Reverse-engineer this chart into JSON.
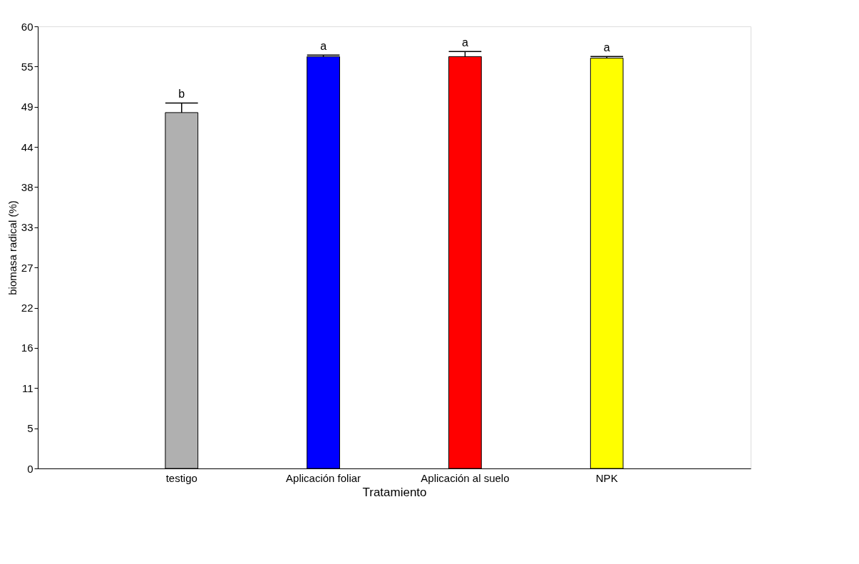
{
  "chart_data": {
    "type": "bar",
    "xlabel": "Tratamiento",
    "ylabel": "biomasa radical (%)",
    "categories": [
      "testigo",
      "Aplicación foliar",
      "Aplicación al suelo",
      "NPK"
    ],
    "values": [
      48.3,
      55.9,
      55.9,
      55.7
    ],
    "colors": [
      "#b0b0b0",
      "#0000ff",
      "#ff0000",
      "#ffff00"
    ],
    "errors": [
      [
        48.3,
        49.6
      ],
      [
        55.9,
        56.1
      ],
      [
        55.9,
        56.6
      ],
      [
        55.7,
        55.9
      ]
    ],
    "ylim": [
      0,
      60
    ],
    "yticks": [
      0,
      {
        "value": 5.45,
        "label": "5"
      },
      {
        "value": 10.91,
        "label": "11"
      },
      {
        "value": 16.36,
        "label": "16"
      },
      {
        "value": 21.82,
        "label": "22"
      },
      {
        "value": 27.27,
        "label": "27"
      },
      {
        "value": 32.73,
        "label": "33"
      },
      {
        "value": 38.18,
        "label": "38"
      },
      {
        "value": 43.64,
        "label": "44"
      },
      {
        "value": 49.09,
        "label": "49"
      },
      {
        "value": 54.55,
        "label": "55"
      },
      60
    ],
    "annotations": [
      {
        "text": "b",
        "x": "testigo",
        "y": 49.6
      },
      {
        "text": "a",
        "x": "Aplicación foliar",
        "y": 56.1
      },
      {
        "text": "a",
        "x": "Aplicación al suelo",
        "y": 56.6
      },
      {
        "text": "a",
        "x": "NPK",
        "y": 55.9
      }
    ],
    "grid": false
  }
}
